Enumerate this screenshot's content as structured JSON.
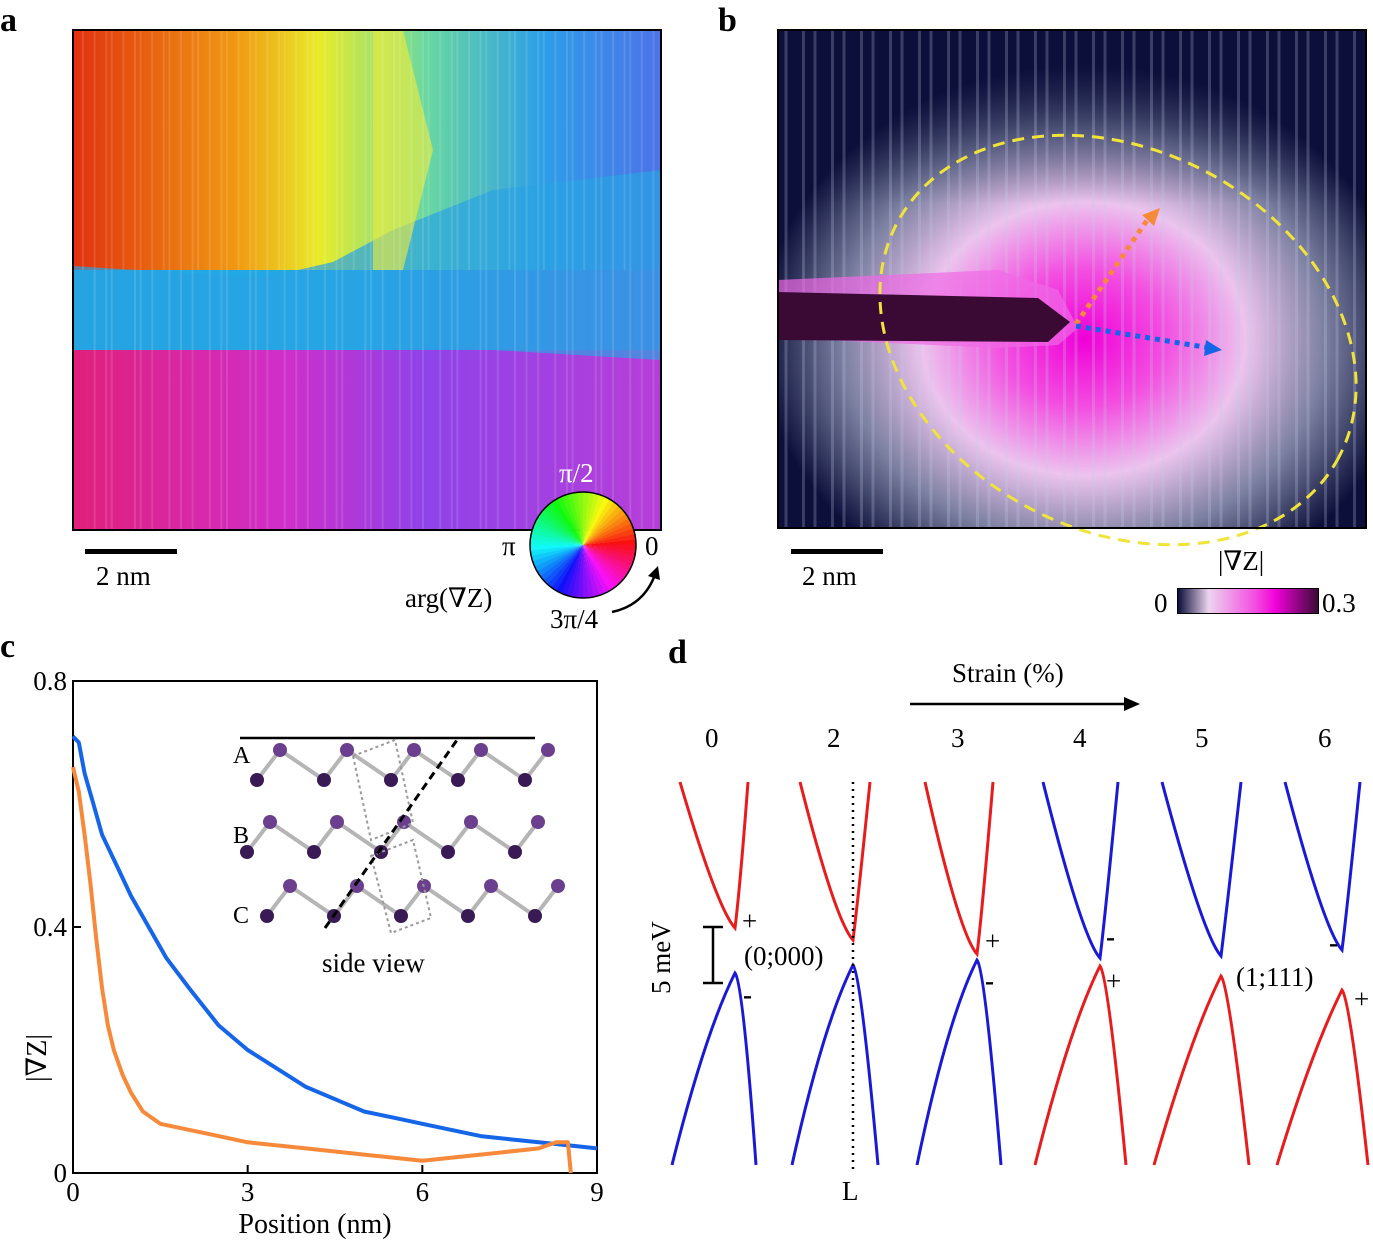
{
  "panels": {
    "a": {
      "label": "a",
      "scalebar": "2 nm",
      "wheel": {
        "top": "π/2",
        "left": "π",
        "right": "0",
        "bottom": "3π/4",
        "caption": "arg(∇Z)"
      }
    },
    "b": {
      "label": "b",
      "scalebar": "2 nm",
      "colorbar": {
        "title": "|∇Z|",
        "min": "0",
        "max": "0.3"
      }
    },
    "c": {
      "label": "c",
      "inset": {
        "rows": [
          "A",
          "B",
          "C"
        ],
        "caption": "side view"
      }
    },
    "d": {
      "label": "d",
      "strain_title": "Strain (%)",
      "strains": [
        "0",
        "2",
        "3",
        "4",
        "5",
        "6"
      ],
      "energy_scale": "5 meV",
      "state_left": "(0;000)",
      "state_right": "(1;111)",
      "k_point": "L",
      "upper_parity": [
        "+",
        "",
        "+",
        "-",
        "",
        "-"
      ],
      "lower_parity": [
        "-",
        "",
        "-",
        "+",
        "",
        "+"
      ]
    }
  },
  "chart_data": {
    "type": "line",
    "xlabel": "Position (nm)",
    "ylabel": "|∇Z|",
    "xlim": [
      0,
      9
    ],
    "ylim": [
      0,
      0.8
    ],
    "xticks": [
      0,
      3,
      6,
      9
    ],
    "yticks": [
      0,
      0.4,
      0.8
    ],
    "ytick_labels": [
      "0",
      "0.4",
      "0.8"
    ],
    "series": [
      {
        "color": "#1565e8",
        "x": [
          0,
          0.1,
          0.2,
          0.35,
          0.5,
          0.75,
          1.0,
          1.3,
          1.6,
          2.0,
          2.5,
          3.0,
          3.5,
          4.0,
          4.5,
          5.0,
          5.5,
          6.0,
          6.5,
          7.0,
          7.5,
          8.0,
          8.5,
          9.0
        ],
        "y": [
          0.71,
          0.7,
          0.65,
          0.6,
          0.55,
          0.5,
          0.45,
          0.4,
          0.35,
          0.3,
          0.24,
          0.2,
          0.17,
          0.14,
          0.12,
          0.1,
          0.09,
          0.08,
          0.07,
          0.06,
          0.055,
          0.05,
          0.045,
          0.04
        ]
      },
      {
        "color": "#f7893b",
        "x": [
          0,
          0.1,
          0.2,
          0.3,
          0.4,
          0.5,
          0.6,
          0.7,
          0.85,
          1.0,
          1.2,
          1.5,
          2.0,
          2.5,
          3.0,
          4.0,
          5.0,
          6.0,
          7.0,
          8.0,
          8.3,
          8.5,
          8.55
        ],
        "y": [
          0.66,
          0.62,
          0.55,
          0.47,
          0.38,
          0.3,
          0.24,
          0.2,
          0.16,
          0.13,
          0.1,
          0.08,
          0.07,
          0.06,
          0.05,
          0.04,
          0.03,
          0.02,
          0.03,
          0.04,
          0.05,
          0.05,
          0.0
        ]
      }
    ]
  },
  "colors": {
    "blue": "#1565e8",
    "orange": "#f7893b",
    "red": "#e81c1c",
    "band_blue": "#1a1ad6",
    "ellipse": "#f0e33a"
  }
}
